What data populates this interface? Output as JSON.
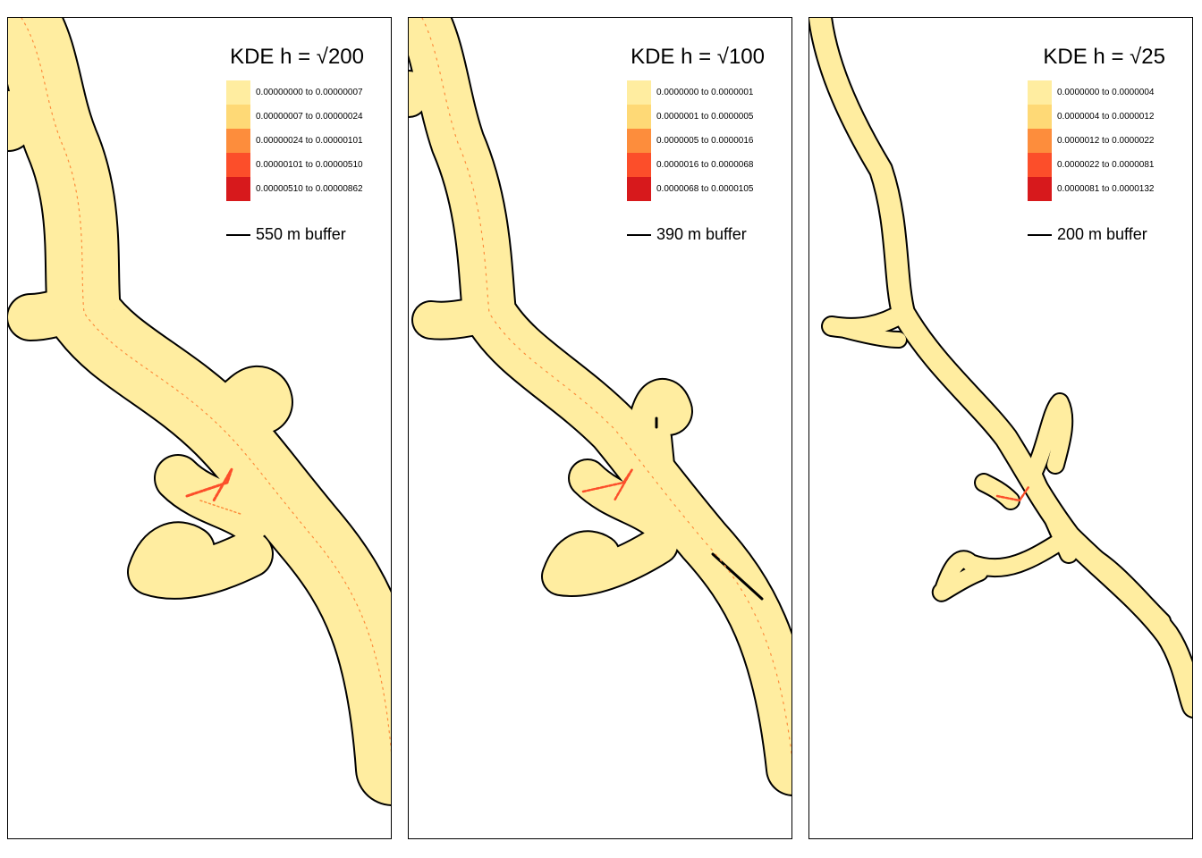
{
  "colors": {
    "buffer_fill": "#FFEDA0",
    "outline": "#000000",
    "hot": "#E31A1C",
    "warm": "#FC4E2A"
  },
  "panels": [
    {
      "title": "KDE h = √200",
      "legend": [
        {
          "label": "0.00000000 to 0.00000007",
          "color": "#FFEDA0"
        },
        {
          "label": "0.00000007 to 0.00000024",
          "color": "#FED976"
        },
        {
          "label": "0.00000024 to 0.00000101",
          "color": "#FD8D3C"
        },
        {
          "label": "0.00000101 to 0.00000510",
          "color": "#FC4E2A"
        },
        {
          "label": "0.00000510 to 0.00000862",
          "color": "#D7191C"
        }
      ],
      "buffer_label": "550 m buffer"
    },
    {
      "title": "KDE h = √100",
      "legend": [
        {
          "label": "0.0000000 to 0.0000001",
          "color": "#FFEDA0"
        },
        {
          "label": "0.0000001 to 0.0000005",
          "color": "#FED976"
        },
        {
          "label": "0.0000005 to 0.0000016",
          "color": "#FD8D3C"
        },
        {
          "label": "0.0000016 to 0.0000068",
          "color": "#FC4E2A"
        },
        {
          "label": "0.0000068 to 0.0000105",
          "color": "#D7191C"
        }
      ],
      "buffer_label": "390 m buffer"
    },
    {
      "title": "KDE h = √25",
      "legend": [
        {
          "label": "0.0000000 to 0.0000004",
          "color": "#FFEDA0"
        },
        {
          "label": "0.0000004 to 0.0000012",
          "color": "#FED976"
        },
        {
          "label": "0.0000012 to 0.0000022",
          "color": "#FD8D3C"
        },
        {
          "label": "0.0000022 to 0.0000081",
          "color": "#FC4E2A"
        },
        {
          "label": "0.0000081 to 0.0000132",
          "color": "#D7191C"
        }
      ],
      "buffer_label": "200 m buffer"
    }
  ]
}
